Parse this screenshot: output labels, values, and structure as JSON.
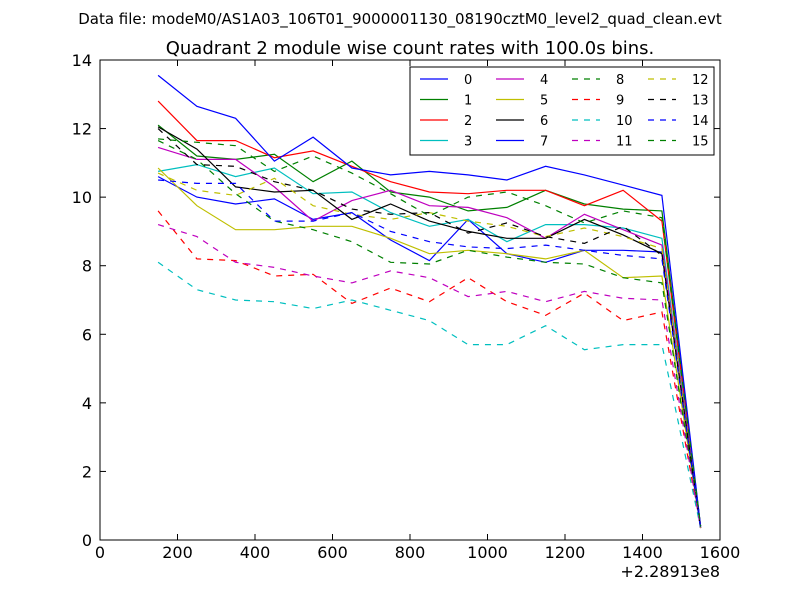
{
  "suptitle": "Data file: modeM0/AS1A03_106T01_9000001130_08190cztM0_level2_quad_clean.evt",
  "chart_data": {
    "type": "line",
    "title": "Quadrant 2 module wise count rates with 100.0s bins.",
    "xlabel": "",
    "ylabel": "",
    "x_offset_label": "+2.28913e8",
    "xlim": [
      0,
      1600
    ],
    "ylim": [
      0,
      14
    ],
    "x_ticks": [
      "0",
      "200",
      "400",
      "600",
      "800",
      "1000",
      "1200",
      "1400",
      "1600"
    ],
    "y_ticks": [
      "0",
      "2",
      "4",
      "6",
      "8",
      "10",
      "12",
      "14"
    ],
    "grid": false,
    "legend_placement": "top-right",
    "legend_columns": 4,
    "x": [
      150,
      250,
      350,
      450,
      550,
      650,
      750,
      850,
      950,
      1050,
      1150,
      1250,
      1350,
      1450,
      1550
    ],
    "series": [
      {
        "name": "0",
        "color": "#0000ff",
        "dash": "solid",
        "values": [
          10.6,
          10.0,
          9.8,
          9.95,
          9.35,
          9.55,
          8.75,
          8.15,
          9.35,
          8.35,
          8.1,
          8.45,
          8.45,
          8.4,
          0.35
        ]
      },
      {
        "name": "1",
        "color": "#008000",
        "dash": "solid",
        "values": [
          12.1,
          11.2,
          11.1,
          11.25,
          10.45,
          11.05,
          10.15,
          10.0,
          9.6,
          9.7,
          10.2,
          9.8,
          9.65,
          9.6,
          0.4
        ]
      },
      {
        "name": "2",
        "color": "#ff0000",
        "dash": "solid",
        "values": [
          12.8,
          11.65,
          11.65,
          11.15,
          11.35,
          10.9,
          10.45,
          10.15,
          10.1,
          10.2,
          10.2,
          9.75,
          10.2,
          9.3,
          0.4
        ]
      },
      {
        "name": "3",
        "color": "#00bfbf",
        "dash": "solid",
        "values": [
          10.75,
          10.95,
          10.6,
          10.85,
          10.1,
          10.15,
          9.55,
          9.15,
          9.35,
          8.7,
          9.2,
          9.2,
          9.1,
          8.8,
          0.4
        ]
      },
      {
        "name": "4",
        "color": "#bf00bf",
        "dash": "solid",
        "values": [
          11.45,
          11.1,
          11.1,
          10.3,
          9.3,
          9.9,
          10.2,
          9.75,
          9.7,
          9.4,
          8.8,
          9.5,
          9.05,
          8.6,
          0.4
        ]
      },
      {
        "name": "5",
        "color": "#bfbf00",
        "dash": "solid",
        "values": [
          10.85,
          9.75,
          9.05,
          9.05,
          9.15,
          9.15,
          8.8,
          8.35,
          8.45,
          8.35,
          8.2,
          8.45,
          7.65,
          7.7,
          0.35
        ]
      },
      {
        "name": "6",
        "color": "#000000",
        "dash": "solid",
        "values": [
          12.05,
          11.4,
          10.3,
          10.15,
          10.2,
          9.35,
          9.8,
          9.3,
          9.0,
          8.8,
          8.8,
          9.35,
          8.9,
          8.35,
          0.35
        ]
      },
      {
        "name": "7",
        "color": "#0000ff",
        "dash": "solid",
        "values": [
          13.55,
          12.65,
          12.3,
          11.05,
          11.75,
          10.85,
          10.65,
          10.75,
          10.65,
          10.5,
          10.9,
          10.65,
          10.35,
          10.05,
          0.4
        ]
      },
      {
        "name": "8",
        "color": "#008000",
        "dash": "dashed",
        "values": [
          11.65,
          11.1,
          10.1,
          9.3,
          9.05,
          8.7,
          8.1,
          8.05,
          8.45,
          8.25,
          8.1,
          8.05,
          7.65,
          7.5,
          0.35
        ]
      },
      {
        "name": "9",
        "color": "#ff0000",
        "dash": "dashed",
        "values": [
          9.6,
          8.2,
          8.15,
          7.7,
          7.75,
          6.9,
          7.35,
          6.95,
          7.65,
          6.95,
          6.55,
          7.2,
          6.4,
          6.65,
          0.35
        ]
      },
      {
        "name": "10",
        "color": "#00bfbf",
        "dash": "dashed",
        "values": [
          8.1,
          7.3,
          7.0,
          6.95,
          6.75,
          7.0,
          6.7,
          6.4,
          5.7,
          5.7,
          6.25,
          5.55,
          5.7,
          5.7,
          0.35
        ]
      },
      {
        "name": "11",
        "color": "#bf00bf",
        "dash": "dashed",
        "values": [
          9.2,
          8.85,
          8.1,
          7.95,
          7.7,
          7.5,
          7.85,
          7.65,
          7.1,
          7.25,
          6.95,
          7.25,
          7.05,
          7.0,
          0.35
        ]
      },
      {
        "name": "12",
        "color": "#bfbf00",
        "dash": "dashed",
        "values": [
          10.7,
          10.2,
          10.05,
          10.55,
          9.75,
          9.5,
          9.35,
          9.55,
          9.3,
          9.15,
          8.85,
          9.1,
          8.85,
          8.5,
          0.35
        ]
      },
      {
        "name": "13",
        "color": "#000000",
        "dash": "dashed",
        "values": [
          12.0,
          10.95,
          10.9,
          10.45,
          10.2,
          9.65,
          9.5,
          9.55,
          8.95,
          9.25,
          8.85,
          8.65,
          9.15,
          8.3,
          0.35
        ]
      },
      {
        "name": "14",
        "color": "#0000ff",
        "dash": "dashed",
        "values": [
          10.5,
          10.4,
          10.4,
          9.3,
          9.3,
          9.55,
          9.0,
          8.7,
          8.55,
          8.5,
          8.6,
          8.45,
          8.3,
          8.2,
          0.35
        ]
      },
      {
        "name": "15",
        "color": "#008000",
        "dash": "dashed",
        "values": [
          11.7,
          11.6,
          11.5,
          10.75,
          11.2,
          10.7,
          10.1,
          9.45,
          10.0,
          10.15,
          9.75,
          9.25,
          9.6,
          9.4,
          0.4
        ]
      }
    ]
  }
}
